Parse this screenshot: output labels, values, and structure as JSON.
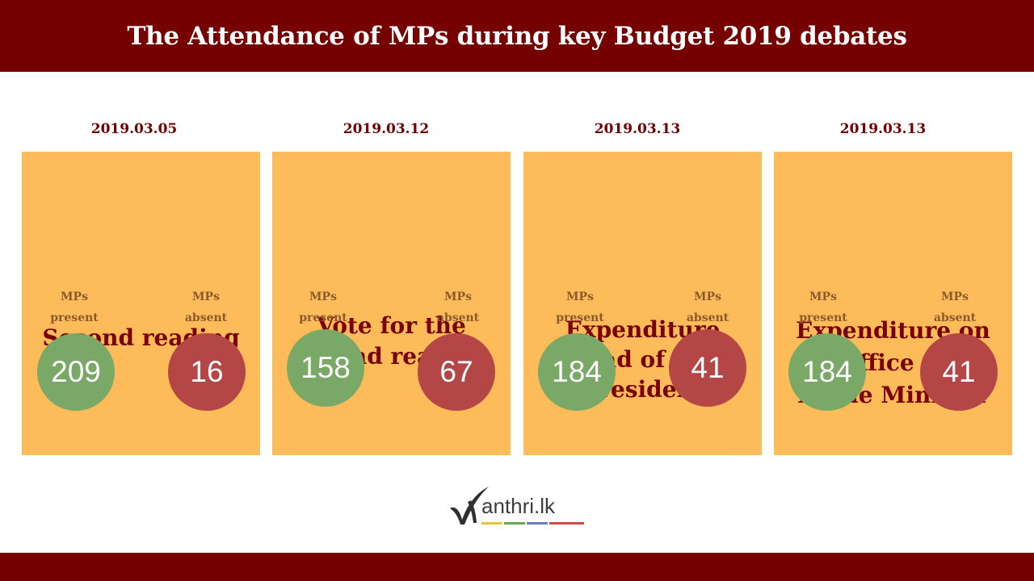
{
  "header": {
    "title": "The Attendance of MPs during key Budget 2019 debates"
  },
  "chart_data": {
    "type": "table",
    "title": "The Attendance of MPs during key Budget 2019 debates",
    "series_labels": {
      "present": "MPs\npresent",
      "absent": "MPs\nabsent"
    },
    "colors": {
      "present": "#7aa866",
      "absent": "#b54646",
      "card": "#fdbb59",
      "header": "#750000"
    },
    "debates": [
      {
        "date": "2019.03.05",
        "title": "Second reading",
        "present": 209,
        "absent": 16
      },
      {
        "date": "2019.03.12",
        "title": "Vote for the\nsecond reading",
        "present": 158,
        "absent": 67
      },
      {
        "date": "2019.03.13",
        "title": "Expenditure\nhead of the\nPresident",
        "present": 184,
        "absent": 41
      },
      {
        "date": "2019.03.13",
        "title": "Expenditure on\nthe Office of the\nPrime Minister",
        "present": 184,
        "absent": 41
      }
    ]
  },
  "logo": {
    "text": "anthri.lk",
    "icon": "manthri-check-logo-icon"
  }
}
